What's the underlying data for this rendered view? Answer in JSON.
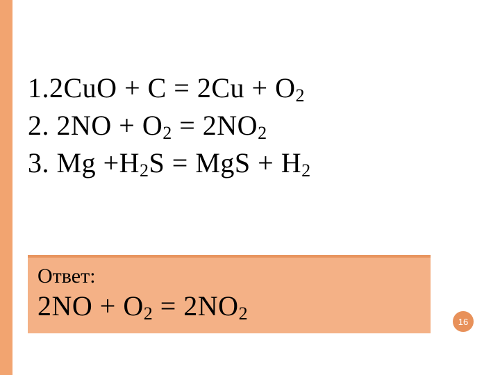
{
  "colors": {
    "border_color": "#f2a470",
    "answer_bg": "#f4b186",
    "answer_border": "#e8955f",
    "page_badge": "#e8915a",
    "text": "#000000",
    "page_number_text": "#ffffff",
    "background": "#ffffff"
  },
  "equations": {
    "line1": {
      "number": "1.",
      "parts": [
        "2CuO + C = 2Cu + O",
        "2"
      ]
    },
    "line2": {
      "number": "2.",
      "parts": [
        " 2NO + O",
        "2",
        " = 2NO",
        "2"
      ]
    },
    "line3": {
      "number": "3.",
      "parts": [
        " Mg +H",
        "2",
        "S = MgS + H",
        "2"
      ]
    }
  },
  "answer": {
    "label": "Ответ:",
    "parts": [
      "2NO + O",
      "2",
      " = 2NO",
      "2"
    ]
  },
  "page_number": "16",
  "typography": {
    "equation_fontsize": 40,
    "subscript_fontsize": 26,
    "answer_label_fontsize": 30,
    "page_number_fontsize": 13
  }
}
